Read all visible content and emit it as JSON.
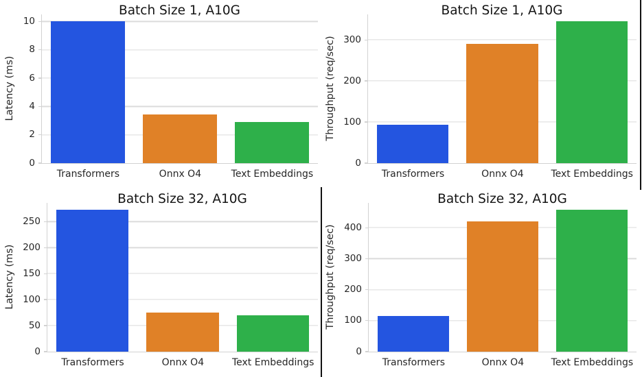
{
  "colors": {
    "background": "#ffffff",
    "bar_blue": "#2455e0",
    "bar_orange": "#e08127",
    "bar_green": "#2eb04a",
    "gridline": "#dcdcdc",
    "spine": "#d2d2d2",
    "tick_text": "#262626",
    "title_text": "#141414",
    "seam": "#111111"
  },
  "chart_data": [
    {
      "type": "bar",
      "title": "Batch Size 1, A10G",
      "ylabel": "Latency (ms)",
      "xlabel": "",
      "categories": [
        "Transformers",
        "Onnx O4",
        "Text Embeddings"
      ],
      "values": [
        10.0,
        3.4,
        2.9
      ],
      "bar_colors": [
        "#2455e0",
        "#e08127",
        "#2eb04a"
      ],
      "yticks": [
        0,
        2,
        4,
        6,
        8,
        10
      ],
      "ylim": [
        0,
        10.5
      ],
      "grid": true,
      "legend": false
    },
    {
      "type": "bar",
      "title": "Batch Size 1, A10G",
      "ylabel": "Throughput (req/sec)",
      "xlabel": "",
      "categories": [
        "Transformers",
        "Onnx O4",
        "Text Embeddings"
      ],
      "values": [
        93,
        290,
        345
      ],
      "bar_colors": [
        "#2455e0",
        "#e08127",
        "#2eb04a"
      ],
      "yticks": [
        0,
        100,
        200,
        300
      ],
      "ylim": [
        0,
        362
      ],
      "grid": true,
      "legend": false
    },
    {
      "type": "bar",
      "title": "Batch Size 32, A10G",
      "ylabel": "Latency (ms)",
      "xlabel": "",
      "categories": [
        "Transformers",
        "Onnx O4",
        "Text Embeddings"
      ],
      "values": [
        272,
        75,
        69
      ],
      "bar_colors": [
        "#2455e0",
        "#e08127",
        "#2eb04a"
      ],
      "yticks": [
        0,
        50,
        100,
        150,
        200,
        250
      ],
      "ylim": [
        0,
        286
      ],
      "grid": true,
      "legend": false
    },
    {
      "type": "bar",
      "title": "Batch Size 32, A10G",
      "ylabel": "Throughput (req/sec)",
      "xlabel": "",
      "categories": [
        "Transformers",
        "Onnx O4",
        "Text Embeddings"
      ],
      "values": [
        115,
        420,
        457
      ],
      "bar_colors": [
        "#2455e0",
        "#e08127",
        "#2eb04a"
      ],
      "yticks": [
        0,
        100,
        200,
        300,
        400
      ],
      "ylim": [
        0,
        480
      ],
      "grid": true,
      "legend": false
    }
  ]
}
